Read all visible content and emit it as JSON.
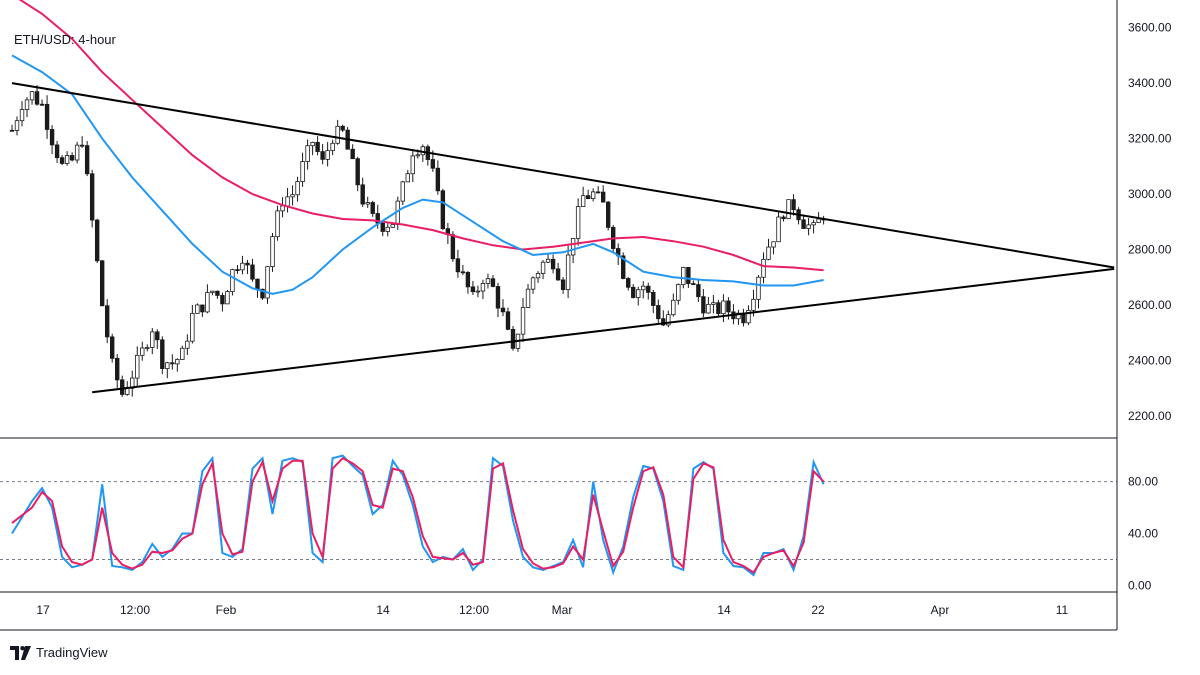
{
  "chart_data": {
    "type": "candlestick",
    "title": "ETH/USD: 4-hour",
    "price_axis": {
      "ticks": [
        "3600.00",
        "3400.00",
        "3200.00",
        "3000.00",
        "2800.00",
        "2600.00",
        "2400.00",
        "2200.00"
      ],
      "ylim": [
        2120,
        3700
      ]
    },
    "oscillator_axis": {
      "ticks": [
        "80.00",
        "40.00",
        "0.00"
      ],
      "ylim": [
        -5,
        112
      ],
      "levels": [
        80,
        20
      ]
    },
    "x_ticks": [
      "17",
      "12:00",
      "Feb",
      "14",
      "12:00",
      "Mar",
      "14",
      "22",
      "Apr",
      "11"
    ],
    "trendlines": [
      {
        "name": "upper",
        "points": [
          [
            0,
            3400
          ],
          [
            110,
            2735
          ]
        ]
      },
      {
        "name": "lower",
        "points": [
          [
            8,
            2285
          ],
          [
            110,
            2730
          ]
        ]
      }
    ],
    "price_anchors": [
      [
        0,
        3230
      ],
      [
        1,
        3330
      ],
      [
        2,
        3360
      ],
      [
        3,
        3320
      ],
      [
        4,
        3200
      ],
      [
        5,
        3100
      ],
      [
        6,
        3120
      ],
      [
        7,
        3200
      ],
      [
        8,
        2900
      ],
      [
        9,
        2600
      ],
      [
        10,
        2380
      ],
      [
        11,
        2280
      ],
      [
        12,
        2350
      ],
      [
        13,
        2430
      ],
      [
        14,
        2520
      ],
      [
        15,
        2400
      ],
      [
        16,
        2390
      ],
      [
        17,
        2420
      ],
      [
        18,
        2560
      ],
      [
        19,
        2600
      ],
      [
        20,
        2650
      ],
      [
        21,
        2620
      ],
      [
        22,
        2720
      ],
      [
        23,
        2780
      ],
      [
        24,
        2680
      ],
      [
        25,
        2650
      ],
      [
        26,
        2850
      ],
      [
        27,
        2980
      ],
      [
        28,
        3000
      ],
      [
        29,
        3100
      ],
      [
        30,
        3190
      ],
      [
        31,
        3110
      ],
      [
        32,
        3210
      ],
      [
        33,
        3220
      ],
      [
        34,
        3100
      ],
      [
        35,
        2980
      ],
      [
        36,
        2910
      ],
      [
        37,
        2890
      ],
      [
        38,
        2900
      ],
      [
        39,
        3020
      ],
      [
        40,
        3160
      ],
      [
        41,
        3180
      ],
      [
        42,
        3070
      ],
      [
        43,
        2900
      ],
      [
        44,
        2780
      ],
      [
        45,
        2700
      ],
      [
        46,
        2620
      ],
      [
        47,
        2700
      ],
      [
        48,
        2660
      ],
      [
        49,
        2560
      ],
      [
        50,
        2420
      ],
      [
        51,
        2600
      ],
      [
        52,
        2700
      ],
      [
        53,
        2750
      ],
      [
        54,
        2760
      ],
      [
        55,
        2680
      ],
      [
        56,
        2860
      ],
      [
        57,
        2990
      ],
      [
        58,
        3000
      ],
      [
        59,
        2960
      ],
      [
        60,
        2830
      ],
      [
        61,
        2720
      ],
      [
        62,
        2650
      ],
      [
        63,
        2670
      ],
      [
        64,
        2600
      ],
      [
        65,
        2530
      ],
      [
        66,
        2600
      ],
      [
        67,
        2720
      ],
      [
        68,
        2660
      ],
      [
        69,
        2600
      ],
      [
        70,
        2580
      ],
      [
        71,
        2590
      ],
      [
        72,
        2570
      ],
      [
        73,
        2560
      ],
      [
        74,
        2650
      ],
      [
        75,
        2780
      ],
      [
        76,
        2850
      ],
      [
        77,
        2940
      ],
      [
        78,
        2960
      ],
      [
        79,
        2900
      ],
      [
        80,
        2870
      ],
      [
        81,
        2930
      ]
    ],
    "ma_slow": {
      "color": "#e91e63",
      "points": [
        [
          0,
          3720
        ],
        [
          3,
          3650
        ],
        [
          6,
          3560
        ],
        [
          9,
          3440
        ],
        [
          12,
          3340
        ],
        [
          15,
          3240
        ],
        [
          18,
          3140
        ],
        [
          21,
          3060
        ],
        [
          24,
          3000
        ],
        [
          27,
          2960
        ],
        [
          30,
          2930
        ],
        [
          33,
          2910
        ],
        [
          36,
          2905
        ],
        [
          39,
          2890
        ],
        [
          42,
          2870
        ],
        [
          45,
          2840
        ],
        [
          48,
          2815
        ],
        [
          51,
          2800
        ],
        [
          54,
          2810
        ],
        [
          57,
          2825
        ],
        [
          60,
          2840
        ],
        [
          63,
          2845
        ],
        [
          66,
          2830
        ],
        [
          69,
          2810
        ],
        [
          72,
          2780
        ],
        [
          75,
          2740
        ],
        [
          78,
          2735
        ],
        [
          81,
          2725
        ]
      ]
    },
    "ma_fast": {
      "color": "#2196f3",
      "points": [
        [
          0,
          3500
        ],
        [
          3,
          3440
        ],
        [
          6,
          3360
        ],
        [
          9,
          3200
        ],
        [
          12,
          3060
        ],
        [
          15,
          2940
        ],
        [
          18,
          2820
        ],
        [
          21,
          2720
        ],
        [
          24,
          2660
        ],
        [
          26,
          2640
        ],
        [
          28,
          2655
        ],
        [
          30,
          2700
        ],
        [
          33,
          2800
        ],
        [
          36,
          2880
        ],
        [
          39,
          2950
        ],
        [
          41,
          2980
        ],
        [
          43,
          2970
        ],
        [
          46,
          2900
        ],
        [
          49,
          2830
        ],
        [
          52,
          2780
        ],
        [
          55,
          2790
        ],
        [
          58,
          2820
        ],
        [
          60,
          2790
        ],
        [
          63,
          2720
        ],
        [
          66,
          2700
        ],
        [
          69,
          2690
        ],
        [
          72,
          2685
        ],
        [
          75,
          2670
        ],
        [
          78,
          2670
        ],
        [
          81,
          2690
        ]
      ]
    },
    "stoch_k": {
      "color": "#2196f3",
      "points": [
        [
          0,
          40
        ],
        [
          2,
          65
        ],
        [
          3,
          75
        ],
        [
          4,
          60
        ],
        [
          5,
          22
        ],
        [
          6,
          14
        ],
        [
          7,
          16
        ],
        [
          8,
          20
        ],
        [
          9,
          78
        ],
        [
          10,
          15
        ],
        [
          11,
          14
        ],
        [
          12,
          12
        ],
        [
          13,
          18
        ],
        [
          14,
          32
        ],
        [
          15,
          22
        ],
        [
          16,
          28
        ],
        [
          17,
          40
        ],
        [
          18,
          40
        ],
        [
          19,
          88
        ],
        [
          20,
          98
        ],
        [
          21,
          25
        ],
        [
          22,
          22
        ],
        [
          23,
          28
        ],
        [
          24,
          90
        ],
        [
          25,
          98
        ],
        [
          26,
          55
        ],
        [
          27,
          96
        ],
        [
          28,
          98
        ],
        [
          29,
          95
        ],
        [
          30,
          25
        ],
        [
          31,
          18
        ],
        [
          32,
          98
        ],
        [
          33,
          100
        ],
        [
          34,
          92
        ],
        [
          35,
          85
        ],
        [
          36,
          55
        ],
        [
          37,
          62
        ],
        [
          38,
          96
        ],
        [
          39,
          85
        ],
        [
          40,
          62
        ],
        [
          41,
          30
        ],
        [
          42,
          18
        ],
        [
          43,
          22
        ],
        [
          44,
          20
        ],
        [
          45,
          28
        ],
        [
          46,
          12
        ],
        [
          47,
          20
        ],
        [
          48,
          98
        ],
        [
          49,
          92
        ],
        [
          50,
          50
        ],
        [
          51,
          22
        ],
        [
          52,
          14
        ],
        [
          53,
          12
        ],
        [
          54,
          15
        ],
        [
          55,
          18
        ],
        [
          56,
          35
        ],
        [
          57,
          14
        ],
        [
          58,
          80
        ],
        [
          59,
          35
        ],
        [
          60,
          10
        ],
        [
          61,
          30
        ],
        [
          62,
          68
        ],
        [
          63,
          92
        ],
        [
          64,
          90
        ],
        [
          65,
          65
        ],
        [
          66,
          15
        ],
        [
          67,
          12
        ],
        [
          68,
          90
        ],
        [
          69,
          95
        ],
        [
          70,
          90
        ],
        [
          71,
          25
        ],
        [
          72,
          15
        ],
        [
          73,
          14
        ],
        [
          74,
          8
        ],
        [
          75,
          25
        ],
        [
          76,
          25
        ],
        [
          77,
          28
        ],
        [
          78,
          12
        ],
        [
          79,
          38
        ],
        [
          80,
          95
        ],
        [
          81,
          78
        ]
      ]
    },
    "stoch_d": {
      "color": "#e91e63",
      "points": [
        [
          0,
          48
        ],
        [
          2,
          60
        ],
        [
          3,
          72
        ],
        [
          4,
          65
        ],
        [
          5,
          30
        ],
        [
          6,
          18
        ],
        [
          7,
          16
        ],
        [
          8,
          20
        ],
        [
          9,
          60
        ],
        [
          10,
          25
        ],
        [
          11,
          16
        ],
        [
          12,
          13
        ],
        [
          13,
          16
        ],
        [
          14,
          26
        ],
        [
          15,
          25
        ],
        [
          16,
          27
        ],
        [
          17,
          36
        ],
        [
          18,
          40
        ],
        [
          19,
          78
        ],
        [
          20,
          94
        ],
        [
          21,
          40
        ],
        [
          22,
          24
        ],
        [
          23,
          26
        ],
        [
          24,
          80
        ],
        [
          25,
          95
        ],
        [
          26,
          65
        ],
        [
          27,
          90
        ],
        [
          28,
          96
        ],
        [
          29,
          96
        ],
        [
          30,
          40
        ],
        [
          31,
          22
        ],
        [
          32,
          90
        ],
        [
          33,
          98
        ],
        [
          34,
          94
        ],
        [
          35,
          88
        ],
        [
          36,
          62
        ],
        [
          37,
          60
        ],
        [
          38,
          90
        ],
        [
          39,
          88
        ],
        [
          40,
          68
        ],
        [
          41,
          38
        ],
        [
          42,
          22
        ],
        [
          43,
          21
        ],
        [
          44,
          20
        ],
        [
          45,
          25
        ],
        [
          46,
          16
        ],
        [
          47,
          18
        ],
        [
          48,
          90
        ],
        [
          49,
          94
        ],
        [
          50,
          58
        ],
        [
          51,
          28
        ],
        [
          52,
          17
        ],
        [
          53,
          13
        ],
        [
          54,
          14
        ],
        [
          55,
          17
        ],
        [
          56,
          30
        ],
        [
          57,
          20
        ],
        [
          58,
          70
        ],
        [
          59,
          42
        ],
        [
          60,
          15
        ],
        [
          61,
          26
        ],
        [
          62,
          60
        ],
        [
          63,
          88
        ],
        [
          64,
          91
        ],
        [
          65,
          70
        ],
        [
          66,
          22
        ],
        [
          67,
          14
        ],
        [
          68,
          82
        ],
        [
          69,
          94
        ],
        [
          70,
          91
        ],
        [
          71,
          35
        ],
        [
          72,
          18
        ],
        [
          73,
          15
        ],
        [
          74,
          10
        ],
        [
          75,
          22
        ],
        [
          76,
          25
        ],
        [
          77,
          27
        ],
        [
          78,
          15
        ],
        [
          79,
          33
        ],
        [
          80,
          88
        ],
        [
          81,
          80
        ]
      ]
    }
  },
  "brand": {
    "name": "TradingView",
    "color": "#131722"
  },
  "colors": {
    "candle": "#1b1b1b",
    "trend": "#000000",
    "grid": "#b2b5be"
  }
}
